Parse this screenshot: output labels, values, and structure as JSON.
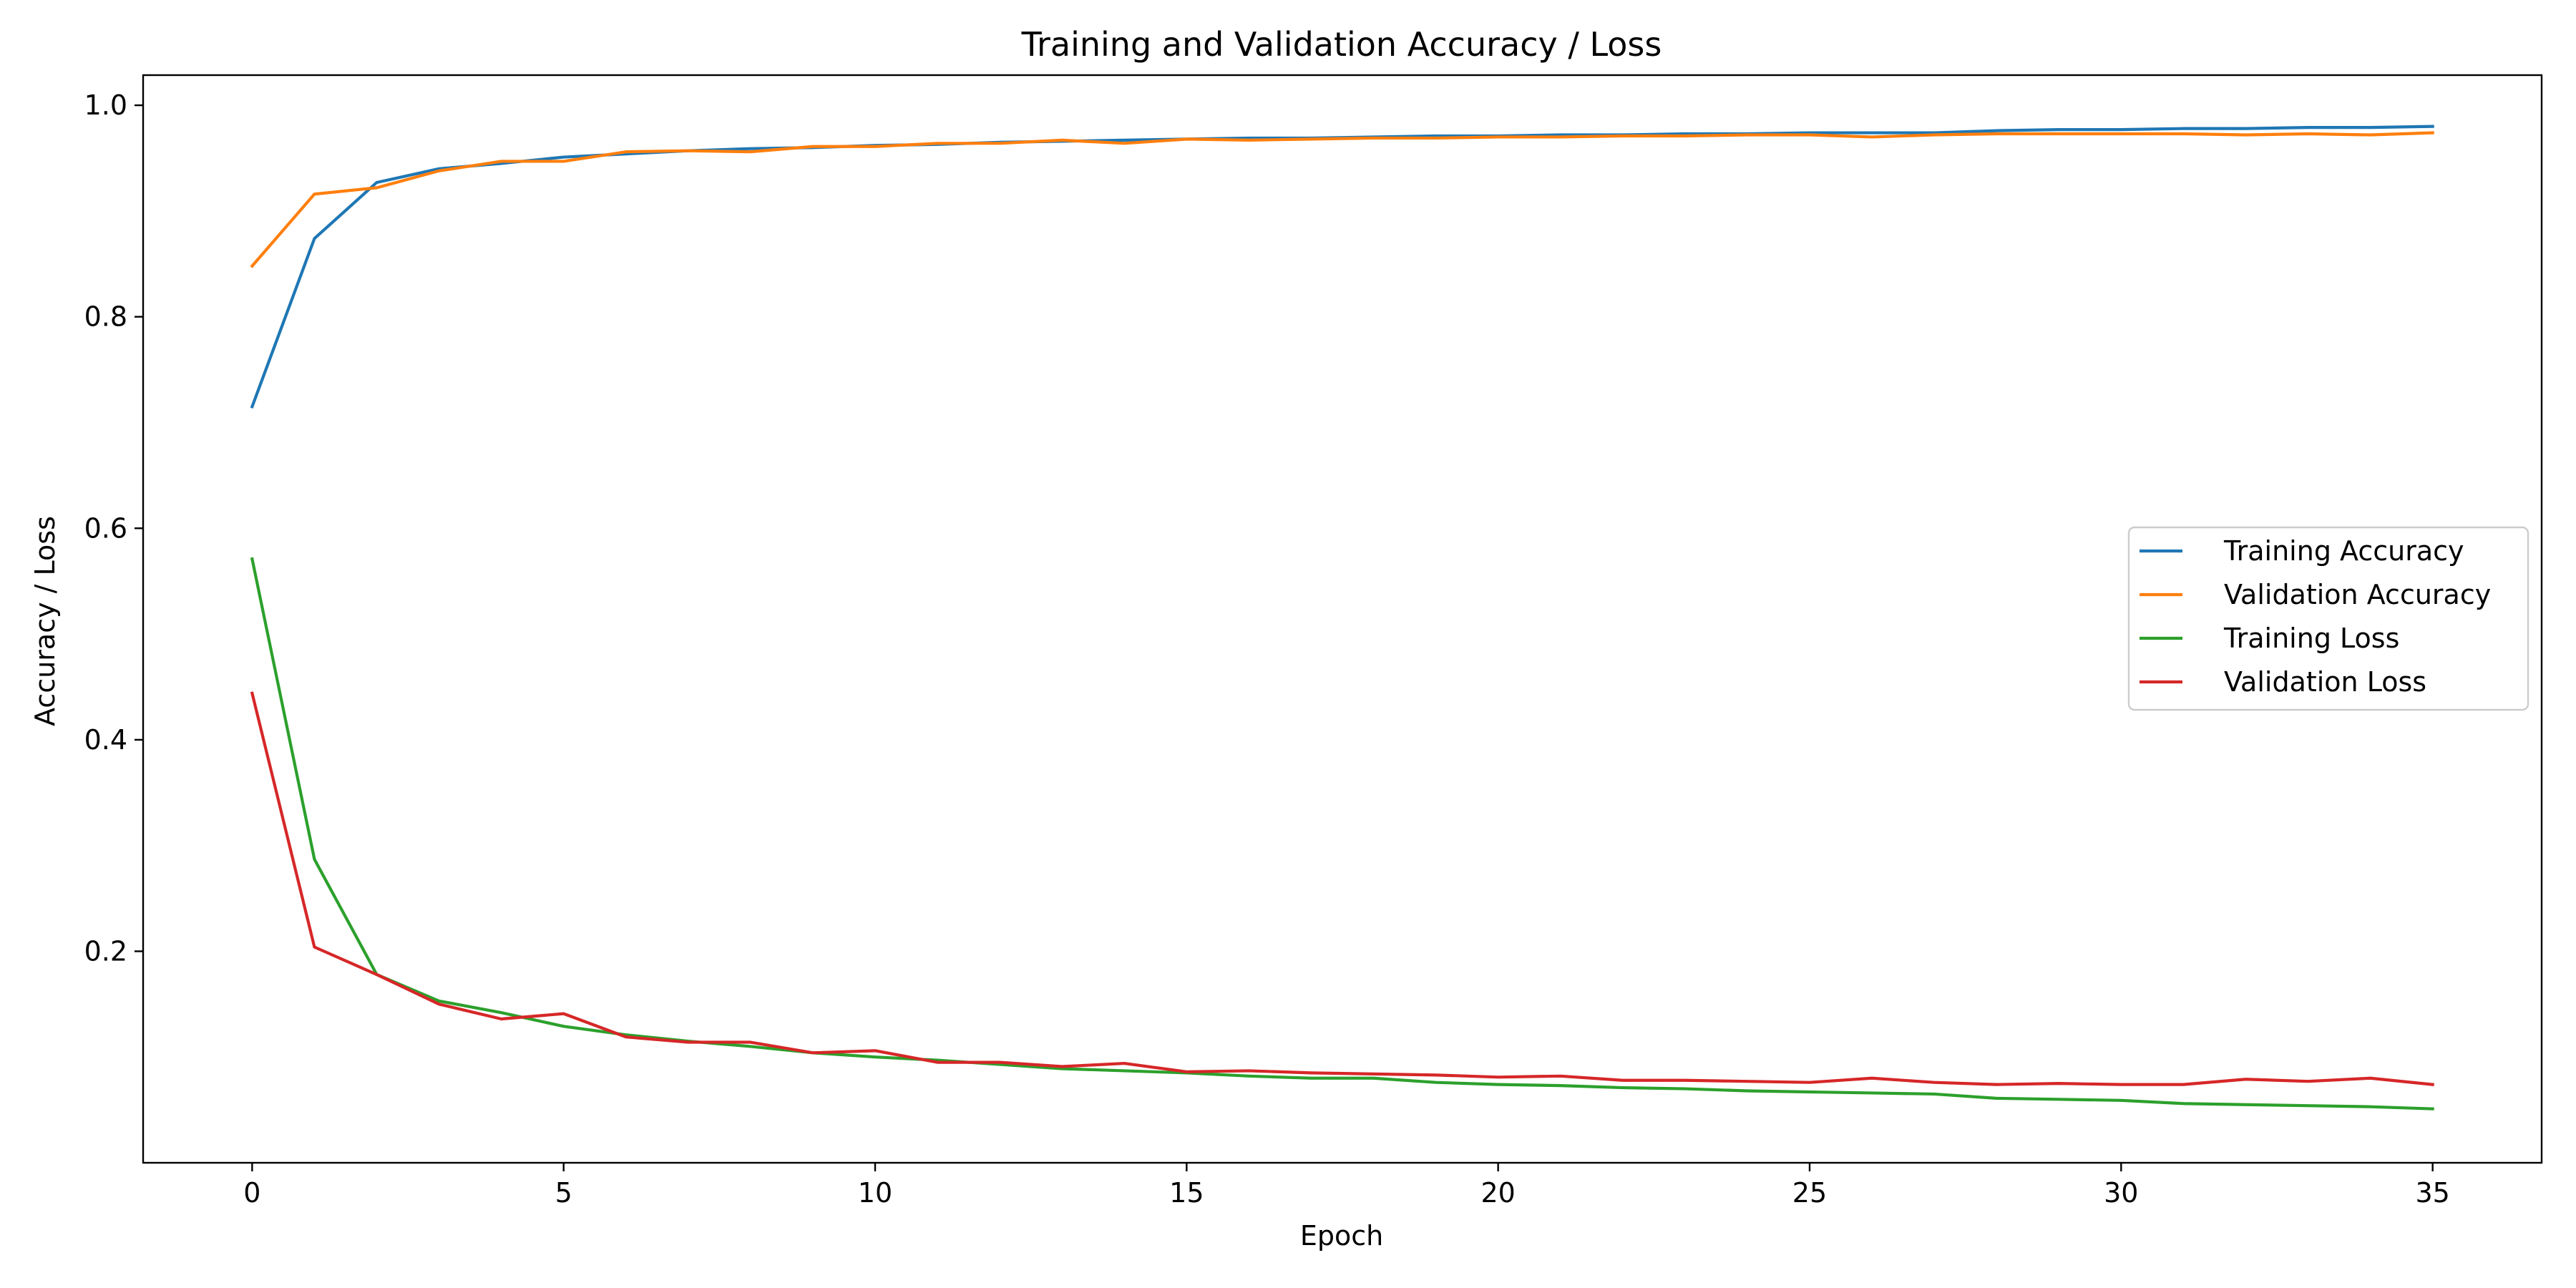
{
  "chart_data": {
    "type": "line",
    "title": "Training and Validation Accuracy / Loss",
    "xlabel": "Epoch",
    "ylabel": "Accuracy / Loss",
    "xlim": [
      -1.75,
      36.75
    ],
    "ylim": [
      0.0,
      1.0285
    ],
    "xticks": [
      0,
      5,
      10,
      15,
      20,
      25,
      30,
      35
    ],
    "yticks": [
      0.2,
      0.4,
      0.6,
      0.8,
      1.0
    ],
    "ytick_labels": [
      "0.2",
      "0.4",
      "0.6",
      "0.8",
      "1.0"
    ],
    "grid": false,
    "legend_position": "center-right",
    "x": [
      0,
      1,
      2,
      3,
      4,
      5,
      6,
      7,
      8,
      9,
      10,
      11,
      12,
      13,
      14,
      15,
      16,
      17,
      18,
      19,
      20,
      21,
      22,
      23,
      24,
      25,
      26,
      27,
      28,
      29,
      30,
      31,
      32,
      33,
      34,
      35
    ],
    "series": [
      {
        "name": "Training Accuracy",
        "color": "#1f77b4",
        "values": [
          0.715,
          0.874,
          0.927,
          0.94,
          0.945,
          0.951,
          0.954,
          0.957,
          0.959,
          0.96,
          0.962,
          0.963,
          0.965,
          0.966,
          0.967,
          0.968,
          0.969,
          0.969,
          0.97,
          0.971,
          0.971,
          0.972,
          0.972,
          0.973,
          0.973,
          0.974,
          0.974,
          0.974,
          0.976,
          0.977,
          0.977,
          0.978,
          0.978,
          0.979,
          0.979,
          0.98
        ]
      },
      {
        "name": "Validation Accuracy",
        "color": "#ff7f0e",
        "values": [
          0.848,
          0.916,
          0.922,
          0.938,
          0.947,
          0.947,
          0.956,
          0.957,
          0.956,
          0.961,
          0.961,
          0.964,
          0.964,
          0.967,
          0.964,
          0.968,
          0.967,
          0.968,
          0.969,
          0.969,
          0.97,
          0.97,
          0.971,
          0.971,
          0.972,
          0.972,
          0.97,
          0.972,
          0.973,
          0.973,
          0.973,
          0.973,
          0.972,
          0.973,
          0.972,
          0.974
        ]
      },
      {
        "name": "Training Loss",
        "color": "#2ca02c",
        "values": [
          0.571,
          0.287,
          0.178,
          0.153,
          0.142,
          0.129,
          0.121,
          0.115,
          0.11,
          0.104,
          0.1,
          0.097,
          0.093,
          0.089,
          0.087,
          0.085,
          0.082,
          0.08,
          0.08,
          0.076,
          0.074,
          0.073,
          0.071,
          0.07,
          0.068,
          0.067,
          0.066,
          0.065,
          0.061,
          0.06,
          0.059,
          0.056,
          0.055,
          0.054,
          0.053,
          0.051
        ]
      },
      {
        "name": "Validation Loss",
        "color": "#d62728",
        "values": [
          0.444,
          0.204,
          0.178,
          0.15,
          0.136,
          0.141,
          0.119,
          0.114,
          0.114,
          0.104,
          0.106,
          0.095,
          0.095,
          0.091,
          0.094,
          0.086,
          0.087,
          0.085,
          0.084,
          0.083,
          0.081,
          0.082,
          0.078,
          0.078,
          0.077,
          0.076,
          0.08,
          0.076,
          0.074,
          0.075,
          0.074,
          0.074,
          0.079,
          0.077,
          0.08,
          0.074
        ]
      }
    ]
  }
}
